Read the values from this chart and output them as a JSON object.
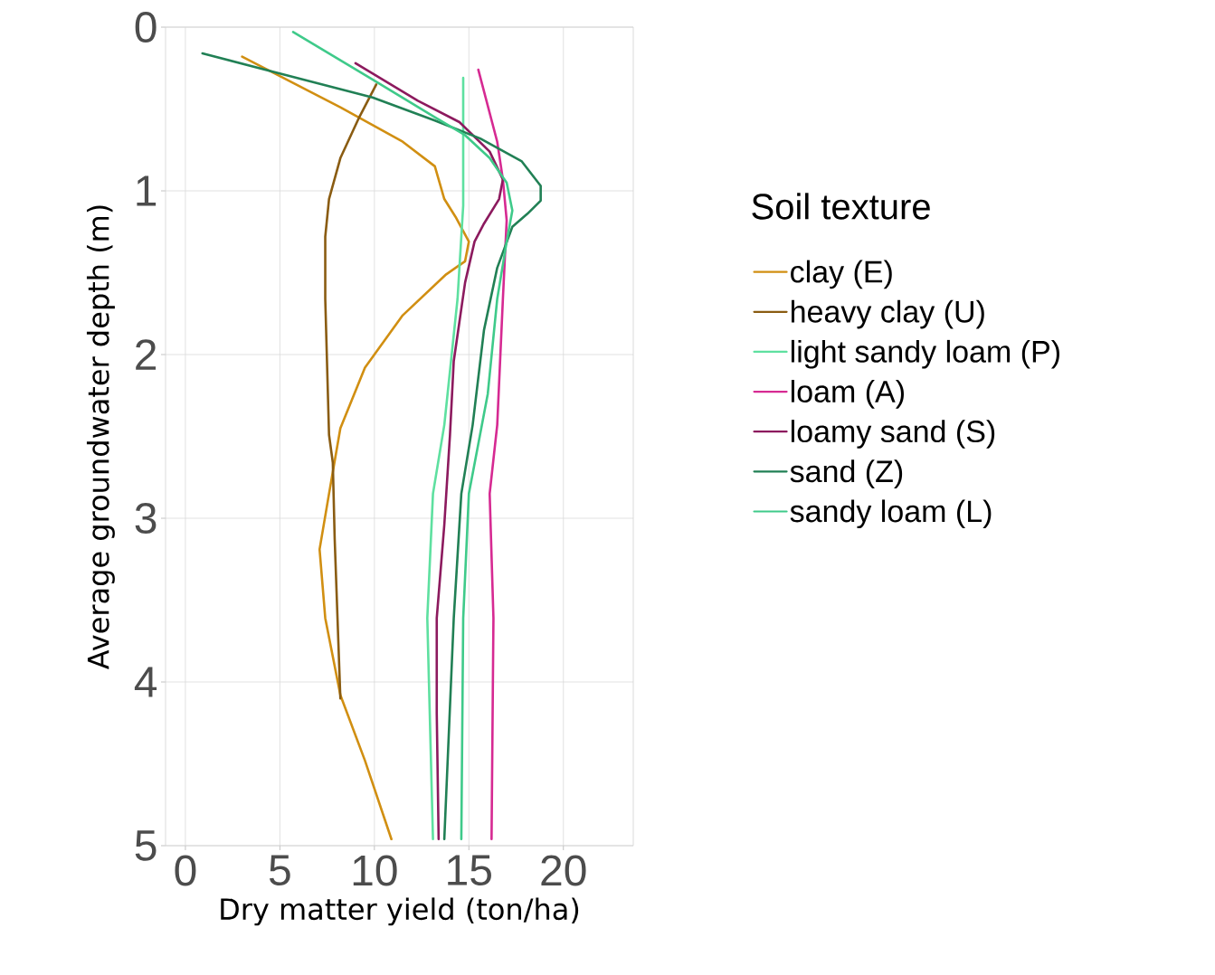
{
  "chart_data": {
    "type": "line",
    "xlabel": "Dry matter yield (ton/ha)",
    "ylabel": "Average groundwater depth (m)",
    "legend_title": "Soil texture",
    "xlim": [
      -1.05,
      23.7
    ],
    "ylim": [
      5,
      0
    ],
    "xticks": [
      0,
      5,
      10,
      15,
      20
    ],
    "yticks": [
      0,
      1,
      2,
      3,
      4,
      5
    ],
    "grid": true,
    "legend": "right",
    "line_style": "solid",
    "marker": "none",
    "series": [
      {
        "name": "clay (E)",
        "color": "#d18f12",
        "x": [
          3.0,
          8.2,
          11.5,
          13.2,
          13.7,
          14.3,
          15.0,
          14.8,
          13.8,
          11.5,
          9.5,
          8.2,
          7.6,
          7.1,
          7.4,
          8.2,
          9.5,
          10.9
        ],
        "values": [
          0.18,
          0.49,
          0.7,
          0.85,
          1.05,
          1.16,
          1.31,
          1.43,
          1.51,
          1.76,
          2.08,
          2.45,
          2.85,
          3.19,
          3.61,
          4.08,
          4.48,
          4.96
        ]
      },
      {
        "name": "heavy clay (U)",
        "color": "#8a5c12",
        "x": [
          10.1,
          9.2,
          8.2,
          7.6,
          7.4,
          7.4,
          7.6,
          7.8,
          7.9,
          8.2
        ],
        "values": [
          0.35,
          0.55,
          0.8,
          1.05,
          1.28,
          1.66,
          2.49,
          2.66,
          3.13,
          4.1
        ]
      },
      {
        "name": "light sandy loam (P)",
        "color": "#5ee0a0",
        "x": [
          14.7,
          14.7,
          14.4,
          13.7,
          13.1,
          12.8,
          13.1
        ],
        "values": [
          0.31,
          1.09,
          1.66,
          2.43,
          2.85,
          3.61,
          4.96
        ]
      },
      {
        "name": "loam (A)",
        "color": "#d62a92",
        "x": [
          15.5,
          16.5,
          16.8,
          17.0,
          16.8,
          16.5,
          16.1,
          16.3,
          16.2
        ],
        "values": [
          0.26,
          0.7,
          0.93,
          1.18,
          1.66,
          2.43,
          2.85,
          3.61,
          4.96
        ]
      },
      {
        "name": "loamy sand (S)",
        "color": "#8c1a5e",
        "x": [
          9.0,
          12.3,
          14.5,
          16.1,
          16.8,
          16.6,
          15.8,
          15.3,
          14.8,
          14.2,
          14.0,
          13.7,
          13.3,
          13.3,
          13.4
        ],
        "values": [
          0.22,
          0.45,
          0.58,
          0.76,
          0.93,
          1.05,
          1.2,
          1.31,
          1.56,
          2.04,
          2.49,
          3.04,
          3.61,
          4.19,
          4.96
        ]
      },
      {
        "name": "sand (Z)",
        "color": "#218055",
        "x": [
          0.9,
          4.9,
          9.9,
          13.2,
          15.6,
          17.8,
          18.8,
          18.8,
          18.1,
          17.3,
          16.5,
          15.8,
          15.2,
          14.6,
          14.2,
          13.7
        ],
        "values": [
          0.16,
          0.28,
          0.43,
          0.57,
          0.68,
          0.82,
          0.97,
          1.06,
          1.14,
          1.22,
          1.47,
          1.85,
          2.43,
          2.85,
          3.61,
          4.96
        ]
      },
      {
        "name": "sandy loam (L)",
        "color": "#3fca8a",
        "x": [
          5.7,
          9.9,
          13.2,
          14.8,
          16.1,
          17.0,
          17.3,
          17.0,
          16.5,
          16.0,
          15.0,
          14.7,
          14.6
        ],
        "values": [
          0.03,
          0.32,
          0.55,
          0.66,
          0.8,
          0.95,
          1.12,
          1.31,
          1.66,
          2.24,
          2.85,
          3.61,
          4.96
        ]
      }
    ]
  }
}
